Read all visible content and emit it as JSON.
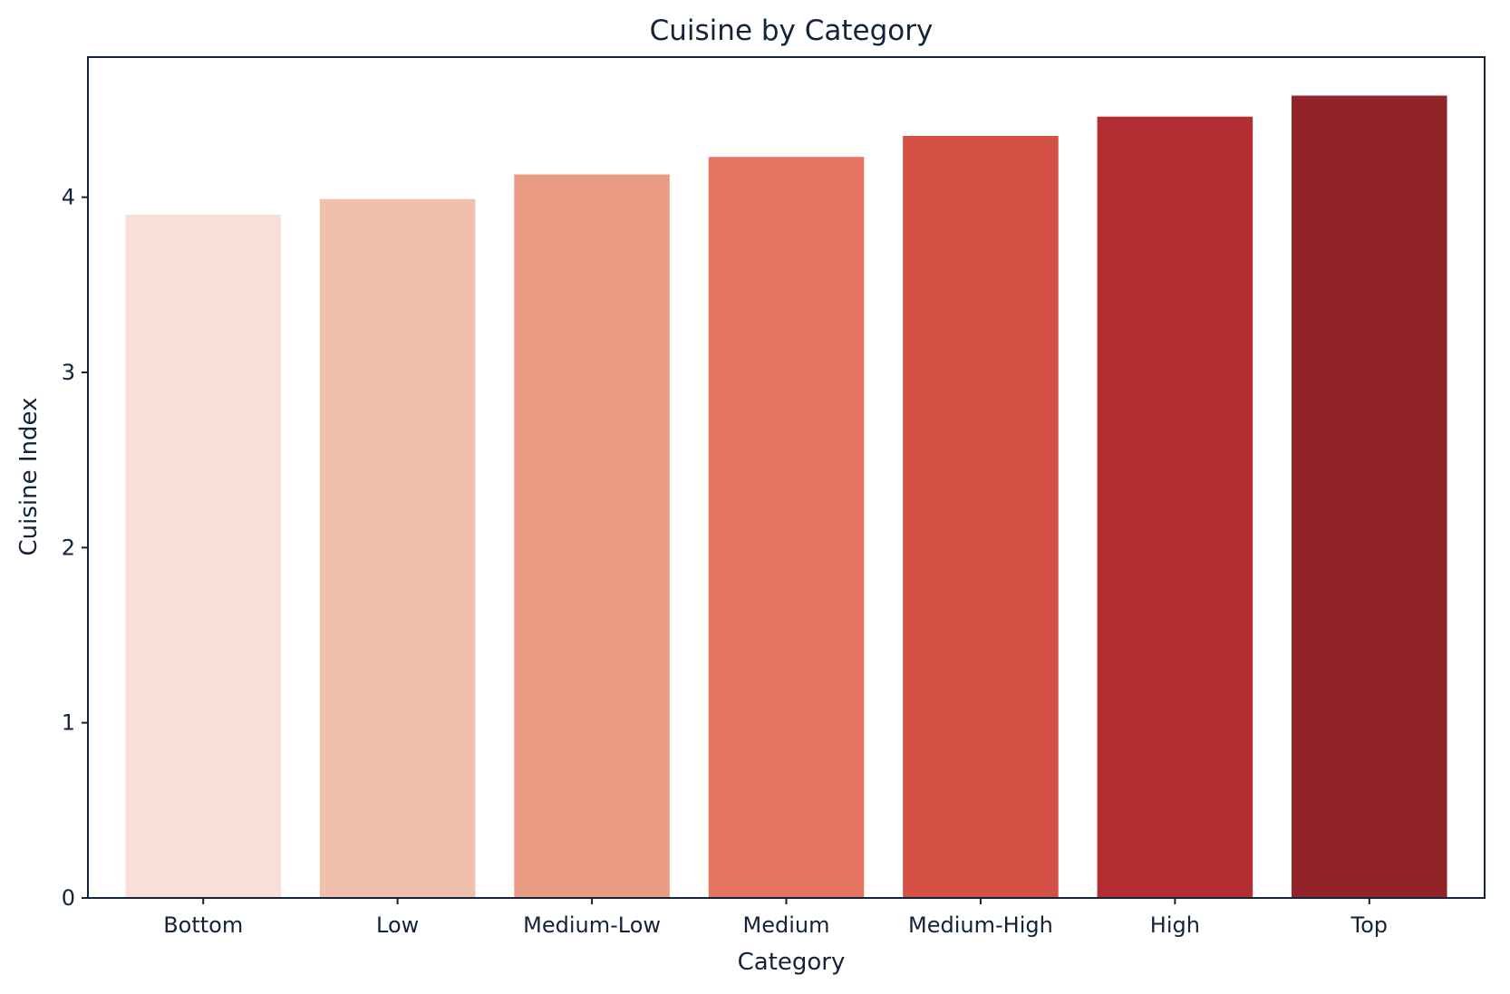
{
  "chart_data": {
    "type": "bar",
    "title": "Cuisine by Category",
    "xlabel": "Category",
    "ylabel": "Cuisine Index",
    "categories": [
      "Bottom",
      "Low",
      "Medium-Low",
      "Medium",
      "Medium-High",
      "High",
      "Top"
    ],
    "values": [
      3.9,
      3.99,
      4.13,
      4.23,
      4.35,
      4.46,
      4.58
    ],
    "colors": [
      "#f8e0d6",
      "#f0c0ac",
      "#ea9b84",
      "#e47661",
      "#d45146",
      "#b22e33",
      "#912329"
    ],
    "ylim": [
      0,
      4.8
    ],
    "yticks": [
      0,
      1,
      2,
      3,
      4
    ],
    "grid": false,
    "legend": "none"
  }
}
